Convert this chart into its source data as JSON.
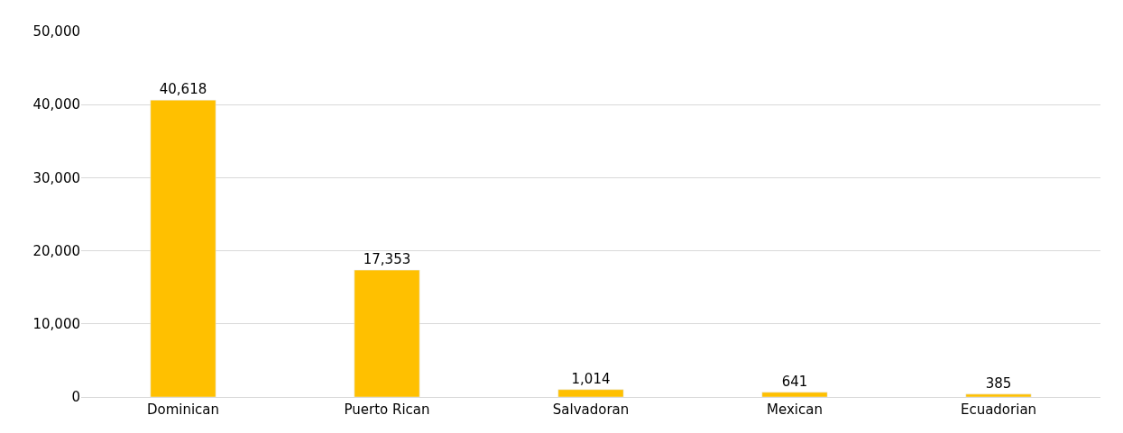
{
  "chart_data": {
    "type": "bar",
    "categories": [
      "Dominican",
      "Puerto Rican",
      "Salvadoran",
      "Mexican",
      "Ecuadorian"
    ],
    "values": [
      40618,
      17353,
      1014,
      641,
      385
    ],
    "color": "#ffc000",
    "value_labels": [
      "40,618",
      "17,353",
      "1,014",
      "641",
      "385"
    ],
    "ylim": [
      0,
      50000
    ],
    "yticks": [
      {
        "value": 0,
        "label": "0"
      },
      {
        "value": 10000,
        "label": "10,000"
      },
      {
        "value": 20000,
        "label": "20,000"
      },
      {
        "value": 30000,
        "label": "30,000"
      },
      {
        "value": 40000,
        "label": "40,000"
      },
      {
        "value": 50000,
        "label": "50,000"
      }
    ],
    "grid": "y",
    "legend": false
  }
}
